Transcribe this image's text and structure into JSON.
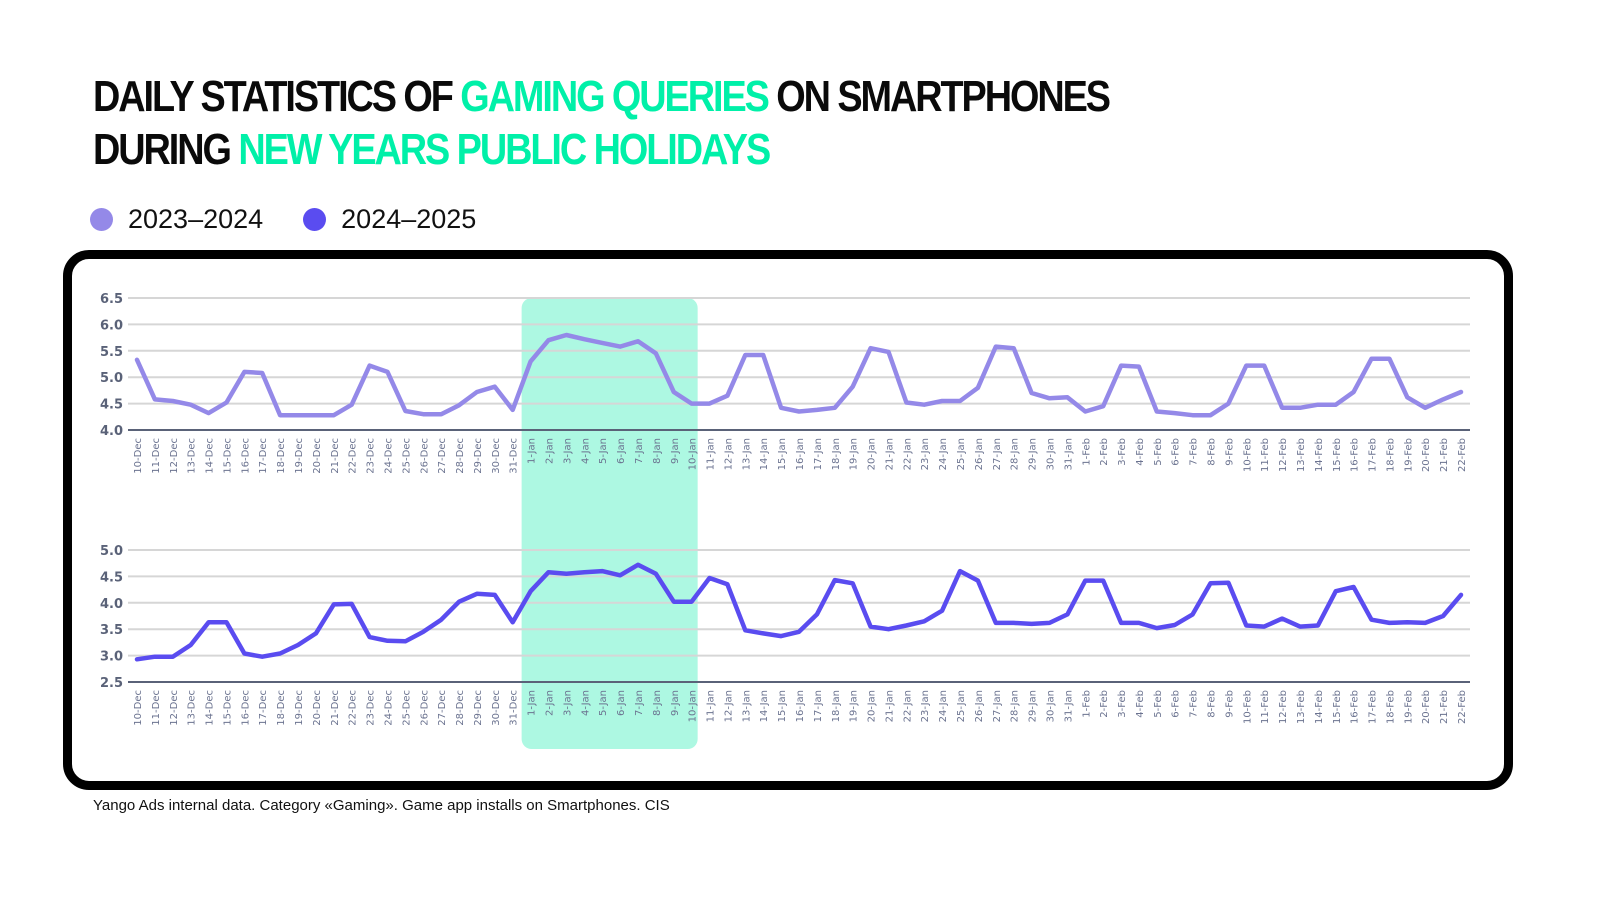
{
  "title": {
    "line1_part1": "Daily statistics of ",
    "line1_accent": "gaming queries",
    "line1_part2": " on smartphones",
    "line2_part1": "during ",
    "line2_accent": "New Years public holidays"
  },
  "colors": {
    "accent": "#00f0a8",
    "highlight": "#adf8e2",
    "series_2023_2024": "#9489e8",
    "series_2024_2025": "#5a4cf0",
    "grid": "#d6d6d6",
    "axis": "#5a6278",
    "tick_text": "#6b7390"
  },
  "legend": [
    {
      "label": "2023–2024",
      "color": "#9489e8"
    },
    {
      "label": "2024–2025",
      "color": "#5a4cf0"
    }
  ],
  "footer": "Yango Ads internal data. Category «Gaming». Game app installs on Smartphones. CIS",
  "chart_data": [
    {
      "type": "line",
      "title": "",
      "series_name": "2023–2024",
      "xlabel": "",
      "ylabel": "",
      "ylim": [
        4.0,
        6.5
      ],
      "yticks": [
        "4.0",
        "4.5",
        "5.0",
        "5.5",
        "6.0",
        "6.5"
      ],
      "grid": true,
      "highlight_range": [
        "1-Jan",
        "10-Jan"
      ],
      "categories": [
        "10-Dec",
        "11-Dec",
        "12-Dec",
        "13-Dec",
        "14-Dec",
        "15-Dec",
        "16-Dec",
        "17-Dec",
        "18-Dec",
        "19-Dec",
        "20-Dec",
        "21-Dec",
        "22-Dec",
        "23-Dec",
        "24-Dec",
        "25-Dec",
        "26-Dec",
        "27-Dec",
        "28-Dec",
        "29-Dec",
        "30-Dec",
        "31-Dec",
        "1-Jan",
        "2-Jan",
        "3-Jan",
        "4-Jan",
        "5-Jan",
        "6-Jan",
        "7-Jan",
        "8-Jan",
        "9-Jan",
        "10-Jan",
        "11-Jan",
        "12-Jan",
        "13-Jan",
        "14-Jan",
        "15-Jan",
        "16-Jan",
        "17-Jan",
        "18-Jan",
        "19-Jan",
        "20-Jan",
        "21-Jan",
        "22-Jan",
        "23-Jan",
        "24-Jan",
        "25-Jan",
        "26-Jan",
        "27-Jan",
        "28-Jan",
        "29-Jan",
        "30-Jan",
        "31-Jan",
        "1-Feb",
        "2-Feb",
        "3-Feb",
        "4-Feb",
        "5-Feb",
        "6-Feb",
        "7-Feb",
        "8-Feb",
        "9-Feb",
        "10-Feb",
        "11-Feb",
        "12-Feb",
        "13-Feb",
        "14-Feb",
        "15-Feb",
        "16-Feb",
        "17-Feb",
        "18-Feb",
        "19-Feb",
        "20-Feb",
        "21-Feb",
        "22-Feb"
      ],
      "values": [
        5.33,
        4.58,
        4.55,
        4.48,
        4.32,
        4.52,
        5.1,
        5.08,
        4.28,
        4.28,
        4.28,
        4.28,
        4.48,
        5.22,
        5.1,
        4.36,
        4.3,
        4.3,
        4.47,
        4.72,
        4.82,
        4.38,
        5.3,
        5.7,
        5.8,
        5.72,
        5.65,
        5.58,
        5.68,
        5.45,
        4.72,
        4.5,
        4.5,
        4.65,
        5.42,
        5.42,
        4.42,
        4.35,
        4.38,
        4.42,
        4.82,
        5.55,
        5.48,
        4.52,
        4.48,
        4.55,
        4.55,
        4.8,
        5.58,
        5.55,
        4.7,
        4.6,
        4.62,
        4.35,
        4.45,
        5.22,
        5.2,
        4.35,
        4.32,
        4.28,
        4.28,
        4.5,
        5.22,
        5.22,
        4.42,
        4.42,
        4.48,
        4.48,
        4.72,
        5.35,
        5.35,
        4.62,
        4.42,
        4.58,
        4.72
      ]
    },
    {
      "type": "line",
      "title": "",
      "series_name": "2024–2025",
      "xlabel": "",
      "ylabel": "",
      "ylim": [
        2.5,
        5.0
      ],
      "yticks": [
        "2.5",
        "3.0",
        "3.5",
        "4.0",
        "4.5",
        "5.0"
      ],
      "grid": true,
      "highlight_range": [
        "1-Jan",
        "10-Jan"
      ],
      "categories": [
        "10-Dec",
        "11-Dec",
        "12-Dec",
        "13-Dec",
        "14-Dec",
        "15-Dec",
        "16-Dec",
        "17-Dec",
        "18-Dec",
        "19-Dec",
        "20-Dec",
        "21-Dec",
        "22-Dec",
        "23-Dec",
        "24-Dec",
        "25-Dec",
        "26-Dec",
        "27-Dec",
        "28-Dec",
        "29-Dec",
        "30-Dec",
        "31-Dec",
        "1-Jan",
        "2-Jan",
        "3-Jan",
        "4-Jan",
        "5-Jan",
        "6-Jan",
        "7-Jan",
        "8-Jan",
        "9-Jan",
        "10-Jan",
        "11-Jan",
        "12-Jan",
        "13-Jan",
        "14-Jan",
        "15-Jan",
        "16-Jan",
        "17-Jan",
        "18-Jan",
        "19-Jan",
        "20-Jan",
        "21-Jan",
        "22-Jan",
        "23-Jan",
        "24-Jan",
        "25-Jan",
        "26-Jan",
        "27-Jan",
        "28-Jan",
        "29-Jan",
        "30-Jan",
        "31-Jan",
        "1-Feb",
        "2-Feb",
        "3-Feb",
        "4-Feb",
        "5-Feb",
        "6-Feb",
        "7-Feb",
        "8-Feb",
        "9-Feb",
        "10-Feb",
        "11-Feb",
        "12-Feb",
        "13-Feb",
        "14-Feb",
        "15-Feb",
        "16-Feb",
        "17-Feb",
        "18-Feb",
        "19-Feb",
        "20-Feb",
        "21-Feb",
        "22-Feb"
      ],
      "values": [
        2.93,
        2.98,
        2.98,
        3.2,
        3.63,
        3.63,
        3.04,
        2.98,
        3.04,
        3.2,
        3.42,
        3.97,
        3.98,
        3.35,
        3.28,
        3.27,
        3.45,
        3.68,
        4.02,
        4.17,
        4.15,
        3.63,
        4.22,
        4.58,
        4.55,
        4.58,
        4.6,
        4.52,
        4.72,
        4.55,
        4.02,
        4.02,
        4.47,
        4.35,
        3.48,
        3.42,
        3.37,
        3.45,
        3.78,
        4.43,
        4.37,
        3.55,
        3.5,
        3.57,
        3.65,
        3.85,
        4.6,
        4.42,
        3.62,
        3.62,
        3.6,
        3.62,
        3.78,
        4.42,
        4.42,
        3.62,
        3.62,
        3.52,
        3.58,
        3.78,
        4.37,
        4.38,
        3.57,
        3.55,
        3.7,
        3.55,
        3.57,
        4.22,
        4.3,
        3.68,
        3.62,
        3.63,
        3.62,
        3.75,
        4.15
      ]
    }
  ]
}
